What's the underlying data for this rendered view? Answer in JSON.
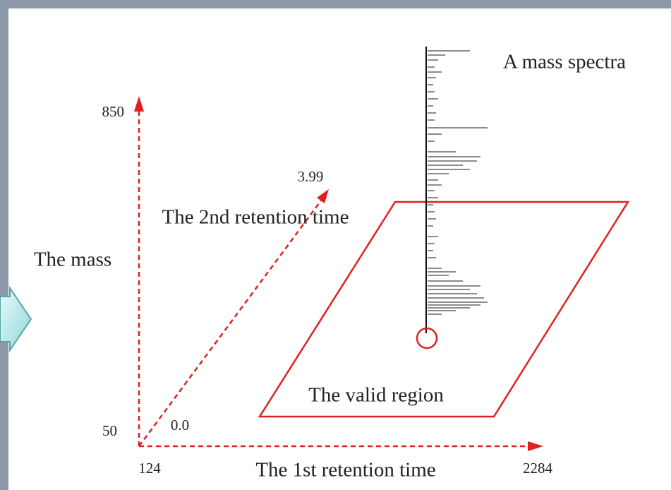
{
  "axes": {
    "mass": {
      "label": "The mass",
      "max": "850",
      "min": "50"
    },
    "first_retention": {
      "label": "The 1st retention time",
      "min": "124",
      "max": "2284"
    },
    "second_retention": {
      "label": "The 2nd retention time",
      "min": "0.0",
      "max": "3.99"
    }
  },
  "region": {
    "label": "The valid region"
  },
  "spectrum": {
    "label": "A mass spectra"
  }
}
